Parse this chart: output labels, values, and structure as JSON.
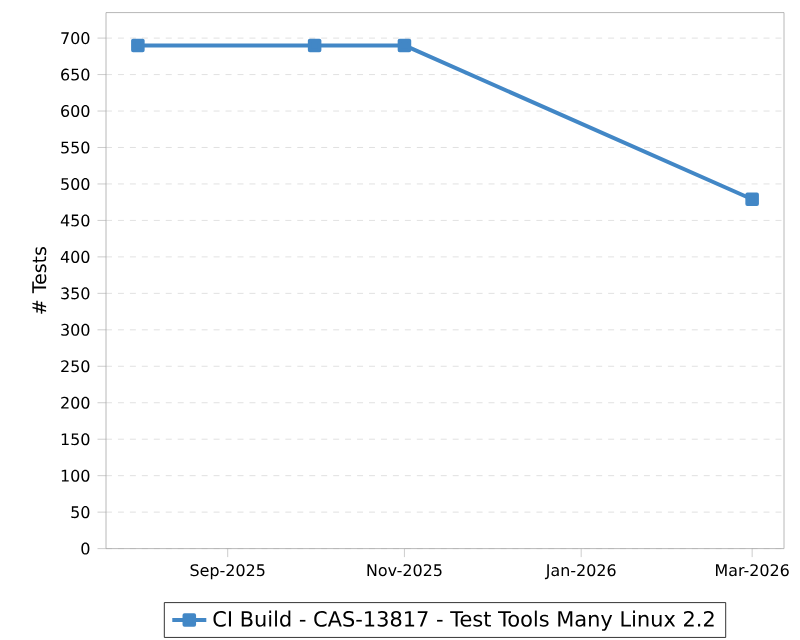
{
  "chart_data": {
    "type": "line",
    "ylabel": "# Tests",
    "x": [
      "2025-08-01",
      "2025-10-01",
      "2025-11-01",
      "2026-03-01"
    ],
    "series": [
      {
        "name": "CI Build - CAS-13817 - Test Tools Many Linux 2.2",
        "color": "#4287c6",
        "values": [
          690,
          690,
          690,
          479
        ]
      }
    ],
    "xlim": [
      "2025-07-21",
      "2026-03-12"
    ],
    "xticks": [
      {
        "value": "2025-09-01",
        "label": "Sep-2025"
      },
      {
        "value": "2025-11-01",
        "label": "Nov-2025"
      },
      {
        "value": "2026-01-01",
        "label": "Jan-2026"
      },
      {
        "value": "2026-03-01",
        "label": "Mar-2026"
      }
    ],
    "ylim": [
      0,
      735
    ],
    "yticks": [
      0,
      50,
      100,
      150,
      200,
      250,
      300,
      350,
      400,
      450,
      500,
      550,
      600,
      650,
      700
    ],
    "grid": "y",
    "legend": "bottom",
    "marker": "square",
    "line_style": "solid"
  }
}
